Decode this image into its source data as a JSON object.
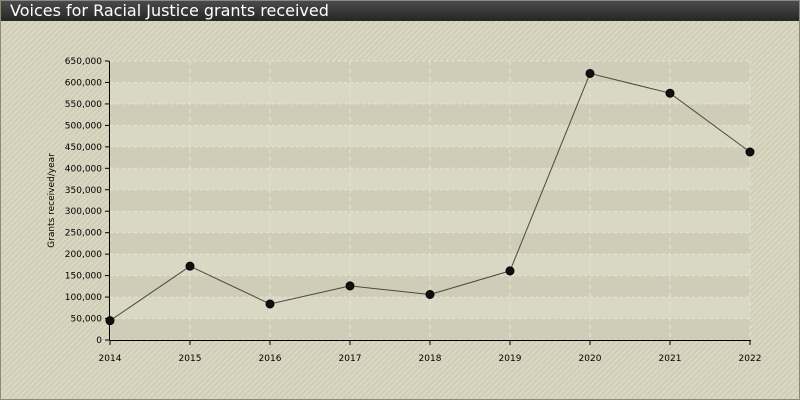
{
  "chart_data": {
    "type": "line",
    "title": "Voices for Racial Justice grants received",
    "xlabel": "",
    "ylabel": "Grants received/year",
    "categories": [
      "2014",
      "2015",
      "2016",
      "2017",
      "2018",
      "2019",
      "2020",
      "2021",
      "2022"
    ],
    "series": [
      {
        "values": [
          45000,
          172000,
          84000,
          126000,
          106000,
          161000,
          621000,
          575000,
          438000
        ]
      }
    ],
    "ylim": [
      0,
      650000
    ],
    "yticks": [
      0,
      50000,
      100000,
      150000,
      200000,
      250000,
      300000,
      350000,
      400000,
      450000,
      500000,
      550000,
      600000,
      650000
    ],
    "ytick_labels": [
      "0",
      "50,000",
      "100,000",
      "150,000",
      "200,000",
      "250,000",
      "300,000",
      "350,000",
      "400,000",
      "450,000",
      "500,000",
      "550,000",
      "600,000",
      "650,000"
    ],
    "grid": true,
    "legend": "none",
    "colors": {
      "line": "#4a4a3a",
      "marker_fill": "#111111",
      "marker_stroke": "#000000",
      "plot_band_light": "#d9d8c5",
      "plot_band_dark": "#cfcdb8",
      "grid": "#e6e4d4",
      "axis": "#000000"
    }
  }
}
